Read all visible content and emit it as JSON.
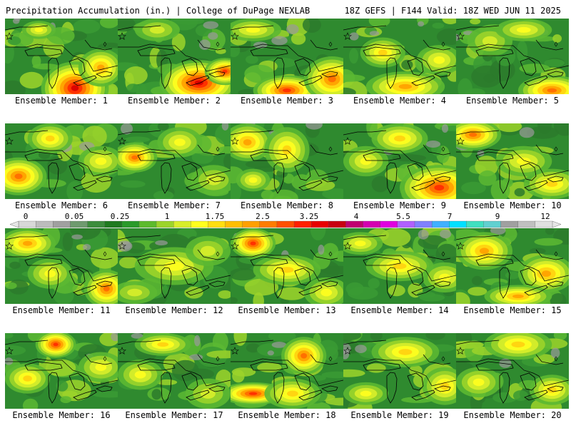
{
  "header": {
    "title_left": "Precipitation Accumulation (in.) | College of DuPage NEXLAB",
    "title_right": "18Z GEFS | F144 Valid: 18Z WED JUN 11 2025"
  },
  "colorbar": {
    "tick_labels": [
      "0",
      "0.05",
      "0.25",
      "1",
      "1.75",
      "2.5",
      "3.25",
      "4",
      "5.5",
      "7",
      "9",
      "12"
    ],
    "colors": [
      "#d8d8d8",
      "#bcbcbc",
      "#a0a0a0",
      "#6e9a6e",
      "#3c8c3c",
      "#1f7a1f",
      "#2a9a2a",
      "#5cba2c",
      "#9cd42a",
      "#d8ee2a",
      "#ffff1e",
      "#ffde10",
      "#ffbe00",
      "#ffa000",
      "#ff7c00",
      "#ff5000",
      "#ff2000",
      "#e80000",
      "#c80010",
      "#c00070",
      "#d400b0",
      "#e000e0",
      "#b060ff",
      "#8080ff",
      "#40b0ff",
      "#00e0ff",
      "#40e0c0",
      "#60d0d0",
      "#a0a0a0",
      "#c0c0c0",
      "#e0e0e0"
    ]
  },
  "members": [
    {
      "label": "Ensemble Member: 1"
    },
    {
      "label": "Ensemble Member: 2"
    },
    {
      "label": "Ensemble Member: 3"
    },
    {
      "label": "Ensemble Member: 4"
    },
    {
      "label": "Ensemble Member: 5"
    },
    {
      "label": "Ensemble Member: 6"
    },
    {
      "label": "Ensemble Member: 7"
    },
    {
      "label": "Ensemble Member: 8"
    },
    {
      "label": "Ensemble Member: 9"
    },
    {
      "label": "Ensemble Member: 10"
    },
    {
      "label": "Ensemble Member: 11"
    },
    {
      "label": "Ensemble Member: 12"
    },
    {
      "label": "Ensemble Member: 13"
    },
    {
      "label": "Ensemble Member: 14"
    },
    {
      "label": "Ensemble Member: 15"
    },
    {
      "label": "Ensemble Member: 16"
    },
    {
      "label": "Ensemble Member: 17"
    },
    {
      "label": "Ensemble Member: 18"
    },
    {
      "label": "Ensemble Member: 19"
    },
    {
      "label": "Ensemble Member: 20"
    }
  ]
}
